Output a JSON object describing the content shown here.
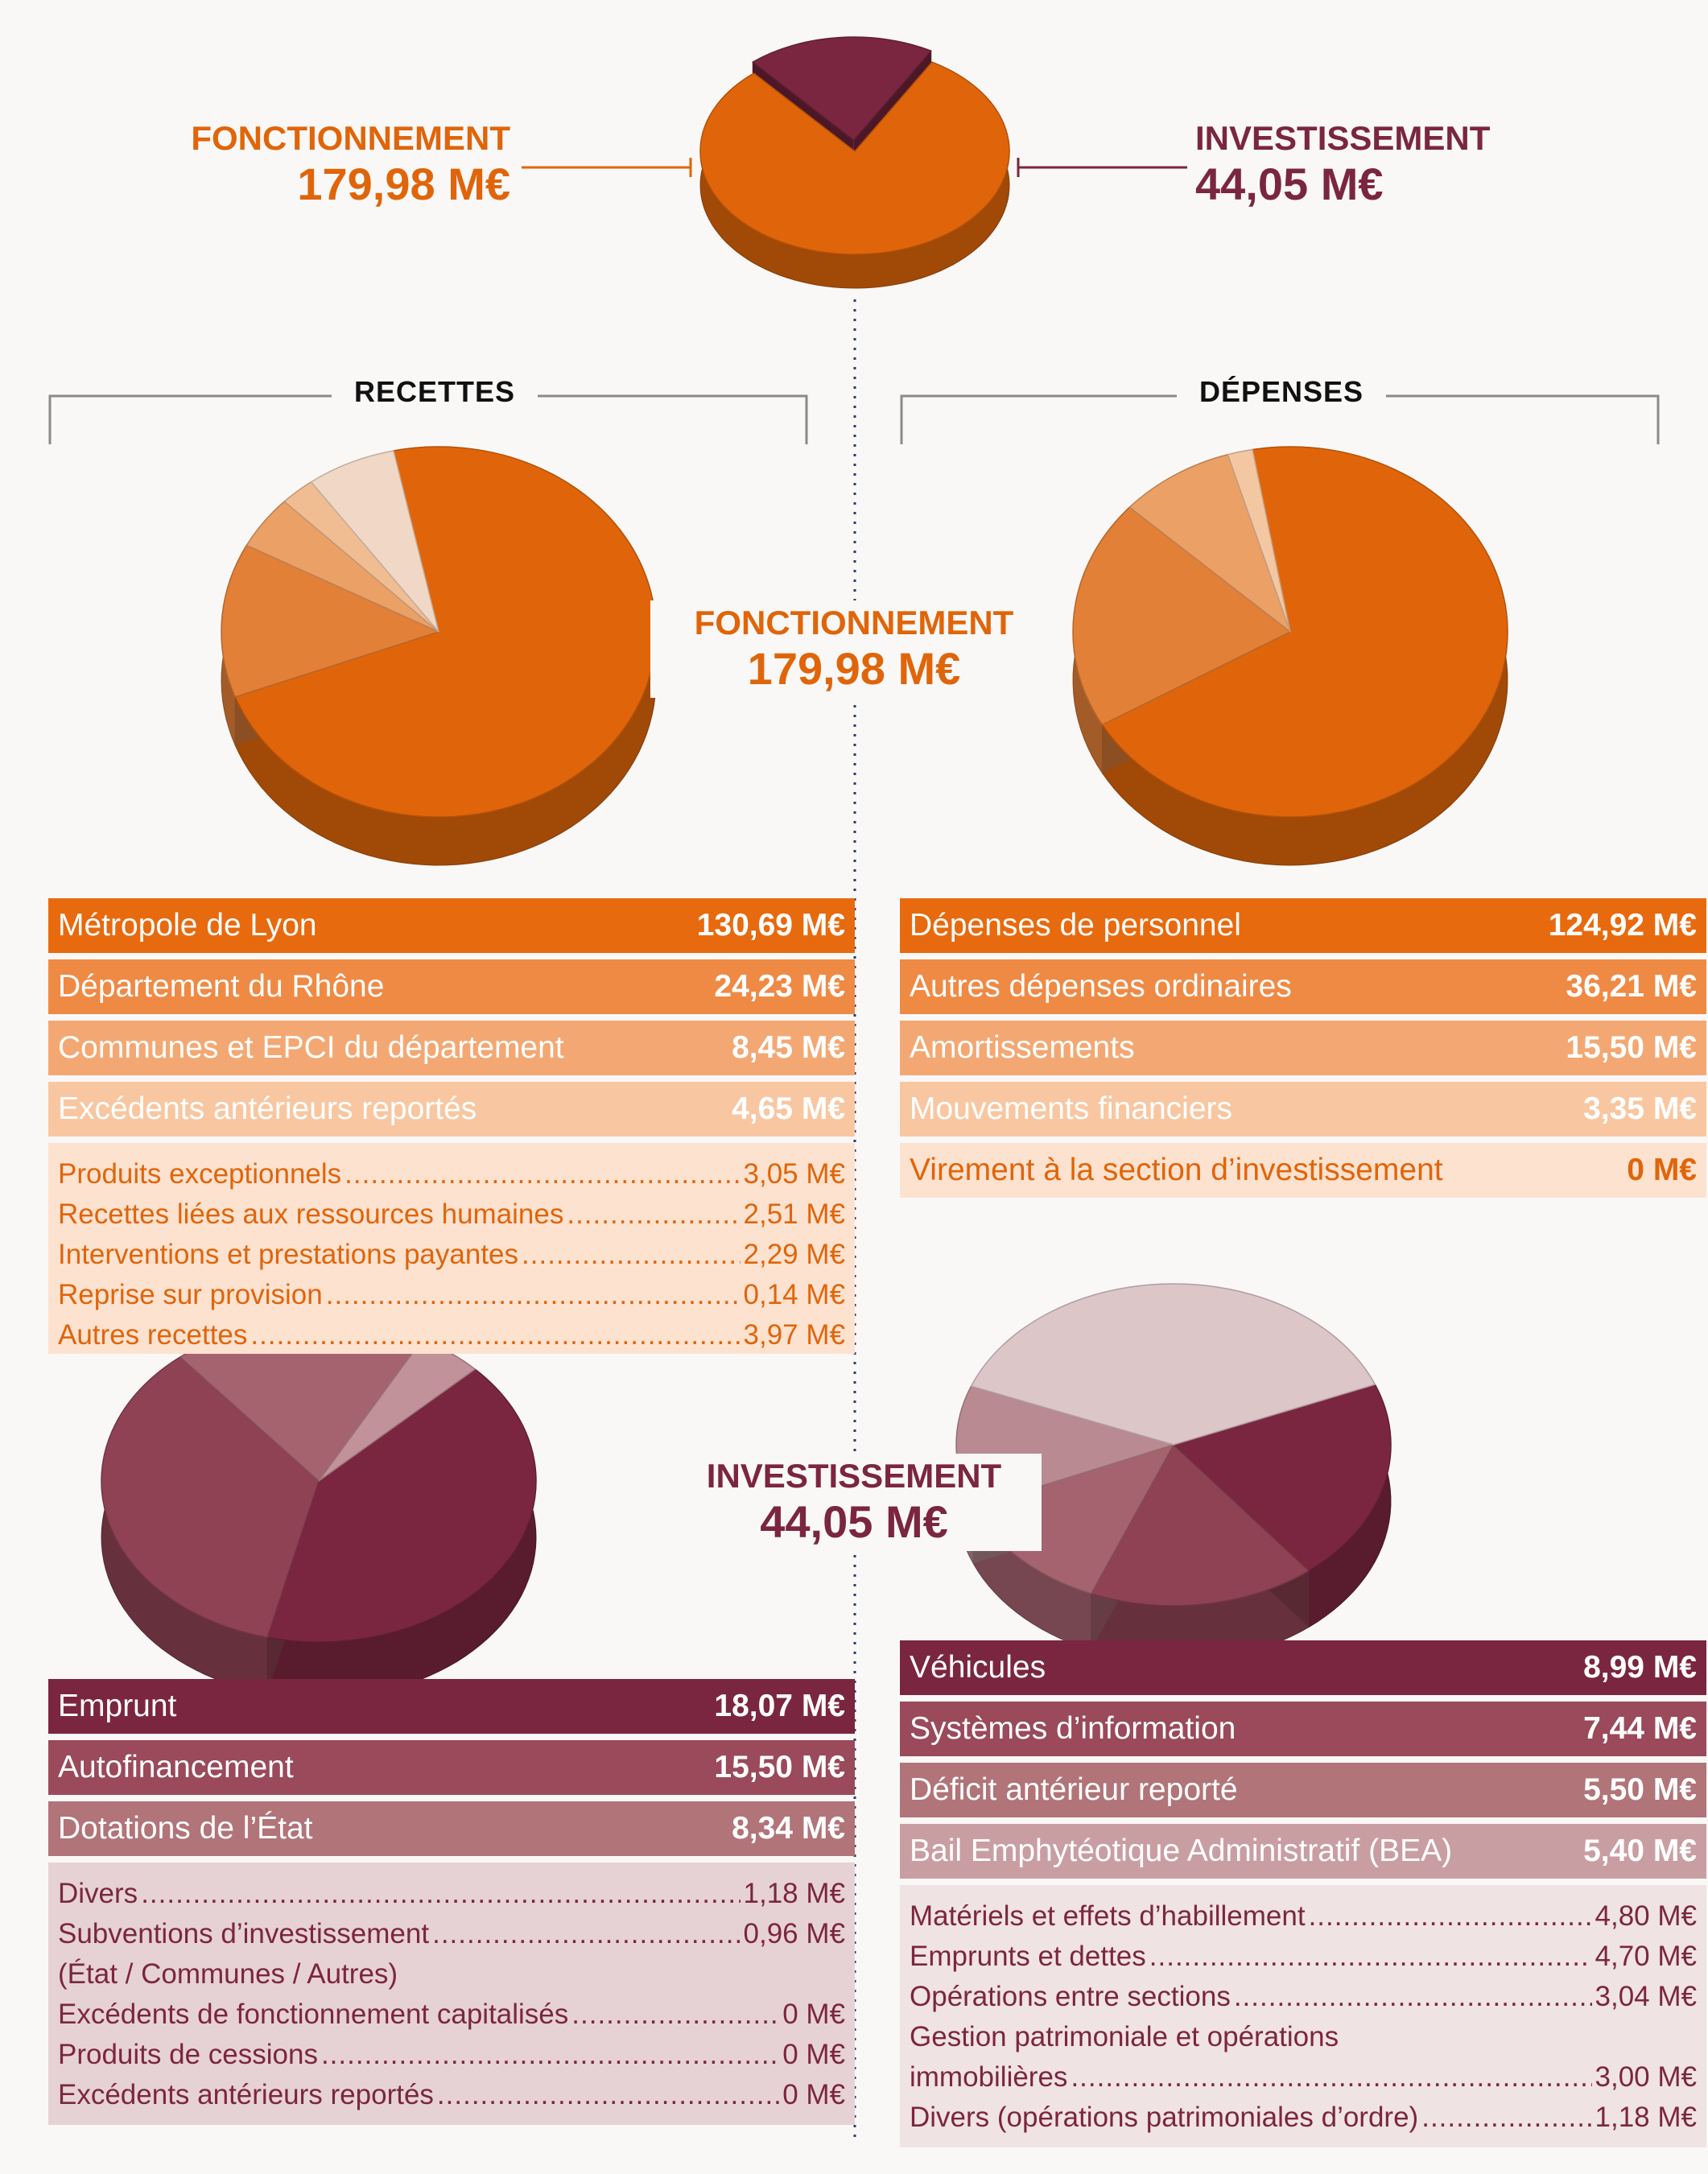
{
  "top": {
    "fonctionnement": {
      "label": "FONCTIONNEMENT",
      "value": "179,98 M€"
    },
    "investissement": {
      "label": "INVESTISSEMENT",
      "value": "44,05 M€"
    }
  },
  "headers": {
    "recettes": "RECETTES",
    "depenses": "DÉPENSES"
  },
  "center": {
    "fonctionnement": {
      "label": "FONCTIONNEMENT",
      "value": "179,98 M€"
    },
    "investissement": {
      "label": "INVESTISSEMENT",
      "value": "44,05 M€"
    }
  },
  "colors": {
    "orange": "#e0650a",
    "orange_dark": "#9c4400",
    "bordeaux": "#7b2640",
    "bordeaux_dark": "#5a1a2e"
  },
  "recettes_fonct": {
    "rows": [
      {
        "label": "Métropole de Lyon",
        "value": "130,69 M€"
      },
      {
        "label": "Département du Rhône",
        "value": "24,23 M€"
      },
      {
        "label": "Communes et EPCI du département",
        "value": "8,45 M€"
      },
      {
        "label": "Excédents antérieurs reportés",
        "value": "4,65 M€"
      }
    ],
    "details": [
      {
        "label": "Produits exceptionnels",
        "value": "3,05 M€"
      },
      {
        "label": "Recettes liées aux ressources humaines",
        "value": "2,51 M€"
      },
      {
        "label": "Interventions et prestations payantes",
        "value": "2,29 M€"
      },
      {
        "label": "Reprise sur provision",
        "value": "0,14 M€"
      },
      {
        "label": "Autres recettes",
        "value": "3,97 M€"
      }
    ]
  },
  "depenses_fonct": {
    "rows": [
      {
        "label": "Dépenses de personnel",
        "value": "124,92 M€"
      },
      {
        "label": "Autres dépenses ordinaires",
        "value": "36,21 M€"
      },
      {
        "label": "Amortissements",
        "value": "15,50 M€"
      },
      {
        "label": "Mouvements financiers",
        "value": "3,35 M€"
      },
      {
        "label": "Virement à la section d’investissement",
        "value": "0 M€"
      }
    ]
  },
  "recettes_invest": {
    "rows": [
      {
        "label": "Emprunt",
        "value": "18,07 M€"
      },
      {
        "label": "Autofinancement",
        "value": "15,50 M€"
      },
      {
        "label": "Dotations de l’État",
        "value": "8,34 M€"
      }
    ],
    "details": [
      {
        "label": "Divers",
        "value": "1,18 M€"
      },
      {
        "label": "Subventions d’investissement",
        "value": "0,96 M€"
      },
      {
        "label": "(État / Communes / Autres)",
        "value": ""
      },
      {
        "label": "Excédents de fonctionnement capitalisés",
        "value": "0 M€"
      },
      {
        "label": "Produits de cessions",
        "value": "0 M€"
      },
      {
        "label": "Excédents antérieurs reportés",
        "value": "0 M€"
      }
    ]
  },
  "depenses_invest": {
    "rows": [
      {
        "label": "Véhicules",
        "value": "8,99 M€"
      },
      {
        "label": "Systèmes d’information",
        "value": "7,44 M€"
      },
      {
        "label": "Déficit antérieur reporté",
        "value": "5,50 M€"
      },
      {
        "label": "Bail Emphytéotique Administratif (BEA)",
        "value": "5,40 M€"
      }
    ],
    "details": [
      {
        "label": "Matériels et effets d’habillement",
        "value": "4,80 M€"
      },
      {
        "label": "Emprunts et dettes",
        "value": "4,70 M€"
      },
      {
        "label": "Opérations entre sections",
        "value": "3,04 M€"
      },
      {
        "label": "Gestion patrimoniale et opérations",
        "value": ""
      },
      {
        "label": "immobilières",
        "value": "3,00 M€"
      },
      {
        "label": "Divers (opérations patrimoniales d’ordre)",
        "value": "1,18 M€"
      }
    ]
  },
  "chart_data": [
    {
      "type": "pie",
      "series": [
        {
          "values": [
            179.98,
            44.05
          ]
        }
      ],
      "categories": [
        "FONCTIONNEMENT",
        "INVESTISSEMENT"
      ]
    },
    {
      "type": "pie",
      "title": "RECETTES",
      "categories": [
        "Métropole de Lyon",
        "Département du Rhône",
        "Communes et EPCI du département",
        "Excédents antérieurs reportés",
        "Autres"
      ],
      "values": [
        130.69,
        24.23,
        8.45,
        4.65,
        11.96
      ]
    },
    {
      "type": "pie",
      "title": "DÉPENSES",
      "categories": [
        "Dépenses de personnel",
        "Autres dépenses ordinaires",
        "Amortissements",
        "Mouvements financiers",
        "Virement à la section d’investissement"
      ],
      "values": [
        124.92,
        36.21,
        15.5,
        3.35,
        0
      ]
    },
    {
      "type": "pie",
      "categories": [
        "Emprunt",
        "Autofinancement",
        "Dotations de l’État",
        "Autres"
      ],
      "values": [
        18.07,
        15.5,
        8.34,
        2.14
      ]
    },
    {
      "type": "pie",
      "categories": [
        "Véhicules",
        "Systèmes d’information",
        "Déficit antérieur reporté",
        "Bail Emphytéotique Administratif (BEA)",
        "Autres"
      ],
      "values": [
        8.99,
        7.44,
        5.5,
        5.4,
        16.72
      ]
    }
  ]
}
